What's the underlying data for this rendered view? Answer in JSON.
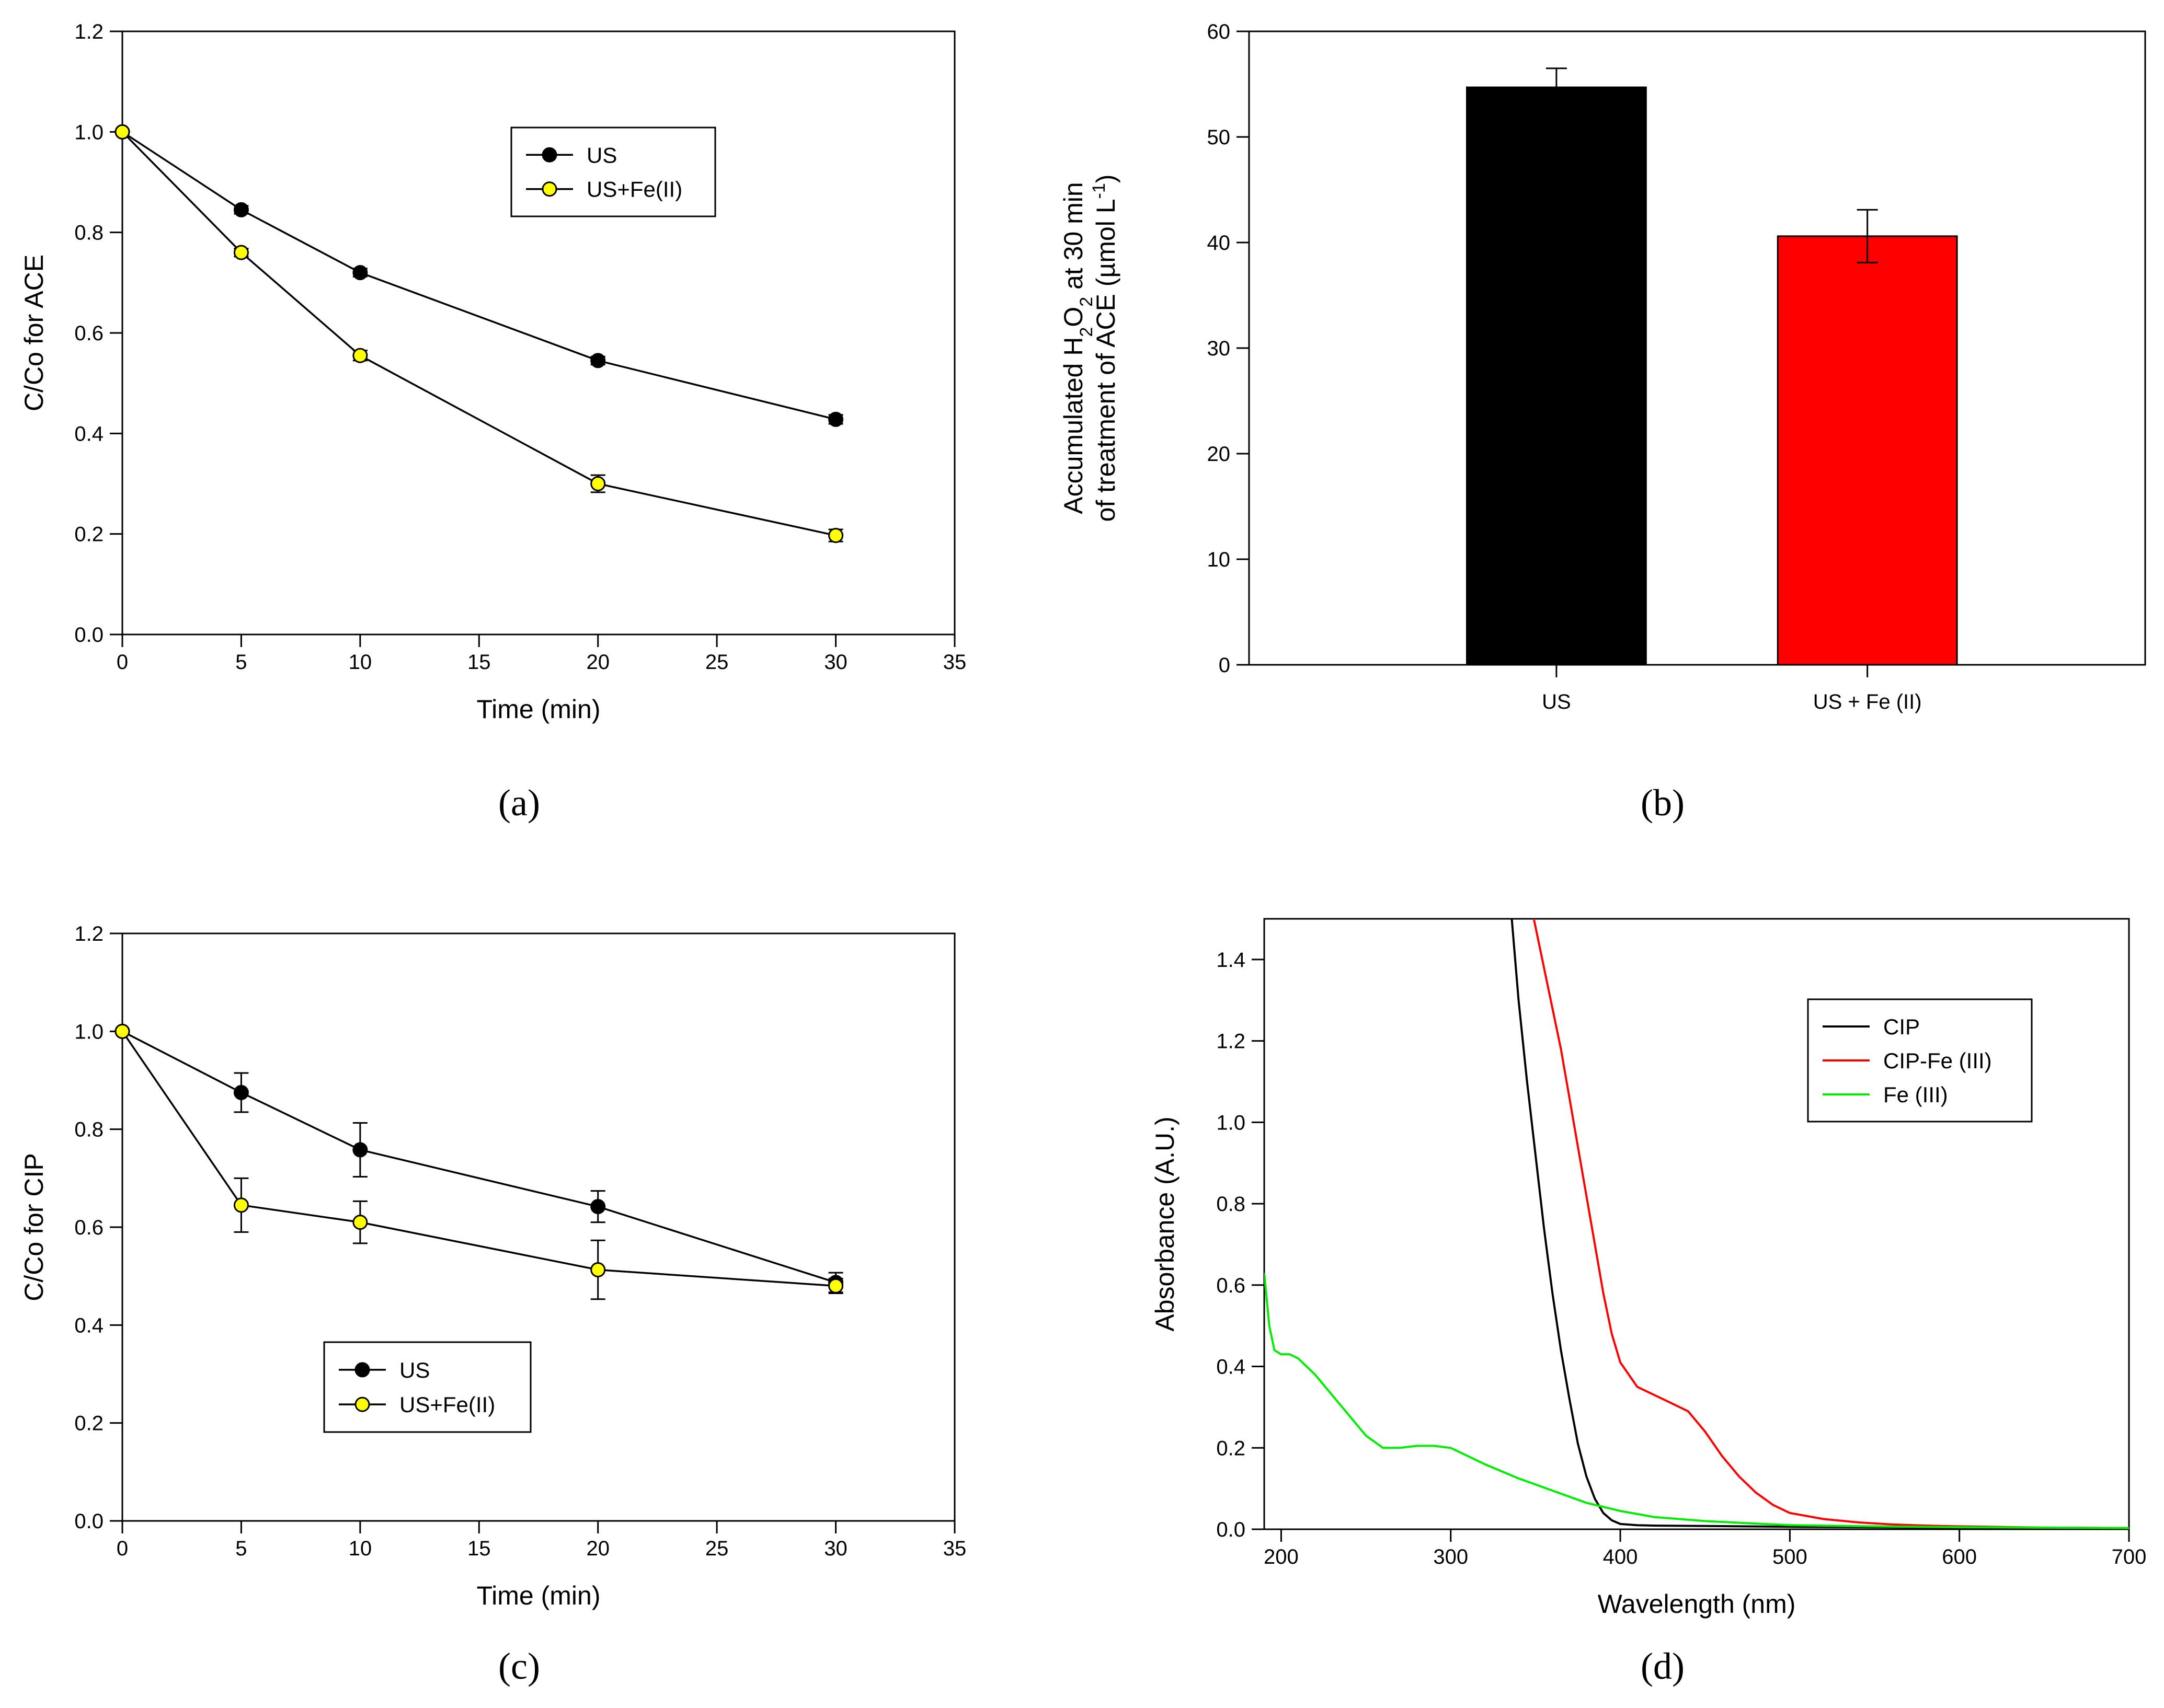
{
  "figure": {
    "panels": [
      "(a)",
      "(b)",
      "(c)",
      "(d)"
    ]
  },
  "chart_data": [
    {
      "id": "a",
      "type": "line",
      "label": "(a)",
      "xlabel": "Time (min)",
      "ylabel": "C/Co for ACE",
      "xlim": [
        0,
        35
      ],
      "ylim": [
        0,
        1.2
      ],
      "xticks": [
        "0",
        "5",
        "10",
        "15",
        "20",
        "25",
        "30",
        "35"
      ],
      "yticks": [
        "0.0",
        "0.2",
        "0.4",
        "0.6",
        "0.8",
        "1.0",
        "1.2"
      ],
      "grid": false,
      "legend_position": "top-center",
      "x": [
        0,
        5,
        10,
        20,
        30
      ],
      "series": [
        {
          "name": "US",
          "color": "#000000",
          "marker": "#000000",
          "values": [
            1.0,
            0.845,
            0.72,
            0.545,
            0.428
          ],
          "errors": [
            0,
            0.008,
            0.008,
            0.008,
            0.009
          ]
        },
        {
          "name": "US+Fe(II)",
          "color": "#000000",
          "marker": "#ffff00",
          "values": [
            1.0,
            0.76,
            0.555,
            0.3,
            0.197
          ],
          "errors": [
            0,
            0.008,
            0.01,
            0.017,
            0.012
          ]
        }
      ]
    },
    {
      "id": "b",
      "type": "bar",
      "label": "(b)",
      "xlabel": "",
      "ylabel_line1": "Accumulated H",
      "ylabel_sub1": "2",
      "ylabel_mid": "O",
      "ylabel_sub2": "2",
      "ylabel_end": " at 30 min",
      "ylabel_line2": "of treatment of ACE (µmol L",
      "ylabel_sup": "-1",
      "ylabel_close": ")",
      "ylim": [
        0,
        60
      ],
      "yticks": [
        "0",
        "10",
        "20",
        "30",
        "40",
        "50",
        "60"
      ],
      "grid": false,
      "categories": [
        "US",
        "US + Fe (II)"
      ],
      "values": [
        54.7,
        40.6
      ],
      "errors": [
        1.8,
        2.5
      ],
      "colors": [
        "#000000",
        "#ff0000"
      ]
    },
    {
      "id": "c",
      "type": "line",
      "label": "(c)",
      "xlabel": "Time (min)",
      "ylabel": "C/Co for CIP",
      "xlim": [
        0,
        35
      ],
      "ylim": [
        0,
        1.2
      ],
      "xticks": [
        "0",
        "5",
        "10",
        "15",
        "20",
        "25",
        "30",
        "35"
      ],
      "yticks": [
        "0.0",
        "0.2",
        "0.4",
        "0.6",
        "0.8",
        "1.0",
        "1.2"
      ],
      "grid": false,
      "legend_position": "bottom-center",
      "x": [
        0,
        5,
        10,
        20,
        30
      ],
      "series": [
        {
          "name": "US",
          "color": "#000000",
          "marker": "#000000",
          "values": [
            1.0,
            0.875,
            0.758,
            0.642,
            0.487
          ],
          "errors": [
            0,
            0.04,
            0.055,
            0.032,
            0.02
          ]
        },
        {
          "name": "US+Fe(II)",
          "color": "#000000",
          "marker": "#ffff00",
          "values": [
            1.0,
            0.645,
            0.61,
            0.513,
            0.48
          ],
          "errors": [
            0,
            0.055,
            0.043,
            0.06,
            0.015
          ]
        }
      ]
    },
    {
      "id": "d",
      "type": "line",
      "label": "(d)",
      "xlabel": "Wavelength (nm)",
      "ylabel": "Absorbance (A.U.)",
      "xlim": [
        190,
        700
      ],
      "ylim": [
        0,
        1.5
      ],
      "xticks": [
        "200",
        "300",
        "400",
        "500",
        "600",
        "700"
      ],
      "yticks": [
        "0.0",
        "0.2",
        "0.4",
        "0.6",
        "0.8",
        "1.0",
        "1.2",
        "1.4"
      ],
      "grid": false,
      "legend_position": "top-right",
      "series": [
        {
          "name": "CIP",
          "color": "#000000",
          "x": [
            336,
            340,
            345,
            350,
            355,
            360,
            365,
            370,
            375,
            380,
            385,
            390,
            395,
            400,
            410,
            420,
            450,
            500,
            600,
            700
          ],
          "values": [
            1.5,
            1.3,
            1.1,
            0.92,
            0.74,
            0.58,
            0.44,
            0.32,
            0.21,
            0.13,
            0.075,
            0.04,
            0.022,
            0.013,
            0.01,
            0.009,
            0.008,
            0.006,
            0.004,
            0.003
          ]
        },
        {
          "name": "CIP-Fe (III)",
          "color": "#ff0000",
          "x": [
            349,
            355,
            360,
            365,
            370,
            375,
            380,
            385,
            390,
            395,
            400,
            410,
            420,
            430,
            440,
            450,
            460,
            470,
            480,
            490,
            500,
            520,
            540,
            560,
            580,
            600,
            650,
            700
          ],
          "values": [
            1.5,
            1.38,
            1.28,
            1.18,
            1.06,
            0.94,
            0.82,
            0.7,
            0.58,
            0.48,
            0.41,
            0.35,
            0.33,
            0.31,
            0.29,
            0.24,
            0.18,
            0.13,
            0.09,
            0.06,
            0.04,
            0.025,
            0.017,
            0.012,
            0.009,
            0.007,
            0.004,
            0.003
          ]
        },
        {
          "name": "Fe (III)",
          "color": "#00ee00",
          "x": [
            190,
            193,
            196,
            200,
            205,
            210,
            220,
            230,
            240,
            250,
            260,
            270,
            280,
            290,
            300,
            310,
            320,
            340,
            360,
            380,
            400,
            420,
            450,
            500,
            550,
            600,
            650,
            700
          ],
          "values": [
            0.63,
            0.5,
            0.44,
            0.43,
            0.43,
            0.42,
            0.38,
            0.33,
            0.28,
            0.23,
            0.2,
            0.2,
            0.205,
            0.205,
            0.2,
            0.18,
            0.16,
            0.125,
            0.095,
            0.065,
            0.045,
            0.03,
            0.02,
            0.01,
            0.007,
            0.005,
            0.004,
            0.003
          ]
        }
      ]
    }
  ]
}
